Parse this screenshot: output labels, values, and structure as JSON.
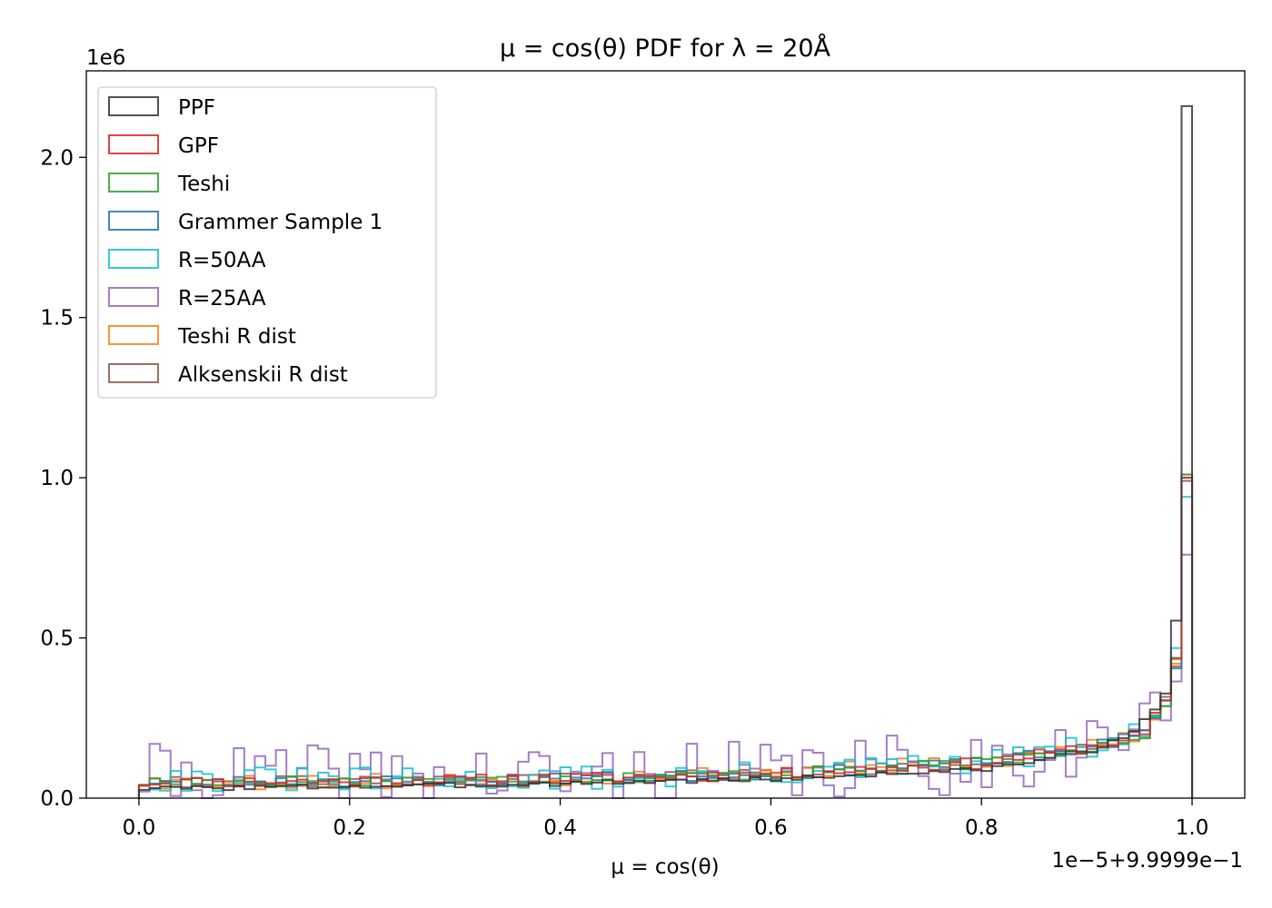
{
  "chart_data": {
    "type": "histogram",
    "title": "μ = cos(θ) PDF for λ = 20Å",
    "xlabel": "μ = cos(θ)",
    "ylabel": "",
    "x_offset_label": "1e−5+9.9999e−1",
    "y_multiplier_label": "1e6",
    "xlim": [
      -0.05,
      1.05
    ],
    "ylim": [
      0,
      2.27
    ],
    "xticks": [
      0.0,
      0.2,
      0.4,
      0.6,
      0.8,
      1.0
    ],
    "xtick_labels": [
      "0.0",
      "0.2",
      "0.4",
      "0.6",
      "0.8",
      "1.0"
    ],
    "yticks": [
      0.0,
      0.5,
      1.0,
      1.5,
      2.0
    ],
    "ytick_labels": [
      "0.0",
      "0.5",
      "1.0",
      "1.5",
      "2.0"
    ],
    "grid": false,
    "legend_position": "upper-left",
    "bin_range": [
      0,
      1
    ],
    "num_bins": 100,
    "series": [
      {
        "name": "PPF",
        "color": "#333333",
        "anchors": [
          [
            0,
            0.03
          ],
          [
            0.3,
            0.04
          ],
          [
            0.6,
            0.06
          ],
          [
            0.8,
            0.09
          ],
          [
            0.9,
            0.15
          ],
          [
            0.94,
            0.21
          ],
          [
            0.96,
            0.27
          ],
          [
            0.97,
            0.32
          ],
          [
            0.98,
            0.56
          ],
          [
            0.99,
            2.16
          ]
        ],
        "noise": 0.004,
        "seed": 3
      },
      {
        "name": "GPF",
        "color": "#d62728",
        "anchors": [
          [
            0,
            0.05
          ],
          [
            0.3,
            0.055
          ],
          [
            0.6,
            0.075
          ],
          [
            0.8,
            0.11
          ],
          [
            0.9,
            0.16
          ],
          [
            0.95,
            0.2
          ],
          [
            0.97,
            0.3
          ],
          [
            0.98,
            0.42
          ],
          [
            0.99,
            1.0
          ]
        ],
        "noise": 0.009,
        "seed": 11
      },
      {
        "name": "Teshi",
        "color": "#2ca02c",
        "anchors": [
          [
            0,
            0.05
          ],
          [
            0.3,
            0.055
          ],
          [
            0.6,
            0.075
          ],
          [
            0.8,
            0.11
          ],
          [
            0.9,
            0.16
          ],
          [
            0.95,
            0.2
          ],
          [
            0.97,
            0.3
          ],
          [
            0.98,
            0.42
          ],
          [
            0.99,
            1.01
          ]
        ],
        "noise": 0.009,
        "seed": 17
      },
      {
        "name": "Grammer Sample 1",
        "color": "#1f77b4",
        "anchors": [
          [
            0,
            0.05
          ],
          [
            0.3,
            0.055
          ],
          [
            0.6,
            0.075
          ],
          [
            0.8,
            0.11
          ],
          [
            0.9,
            0.16
          ],
          [
            0.95,
            0.2
          ],
          [
            0.97,
            0.3
          ],
          [
            0.98,
            0.42
          ],
          [
            0.99,
            1.0
          ]
        ],
        "noise": 0.009,
        "seed": 23
      },
      {
        "name": "R=50AA",
        "color": "#17becf",
        "anchors": [
          [
            0,
            0.06
          ],
          [
            0.3,
            0.055
          ],
          [
            0.6,
            0.075
          ],
          [
            0.8,
            0.11
          ],
          [
            0.9,
            0.16
          ],
          [
            0.95,
            0.2
          ],
          [
            0.97,
            0.3
          ],
          [
            0.98,
            0.44
          ],
          [
            0.99,
            0.94
          ]
        ],
        "noise": 0.02,
        "seed": 31
      },
      {
        "name": "R=25AA",
        "color": "#9467bd",
        "anchors": [
          [
            0,
            0.07
          ],
          [
            0.3,
            0.065
          ],
          [
            0.6,
            0.08
          ],
          [
            0.8,
            0.11
          ],
          [
            0.9,
            0.17
          ],
          [
            0.95,
            0.22
          ],
          [
            0.97,
            0.3
          ],
          [
            0.98,
            0.4
          ],
          [
            0.99,
            0.76
          ]
        ],
        "noise": 0.05,
        "seed": 41
      },
      {
        "name": "Teshi R dist",
        "color": "#ff7f0e",
        "anchors": [
          [
            0,
            0.05
          ],
          [
            0.3,
            0.055
          ],
          [
            0.6,
            0.08
          ],
          [
            0.8,
            0.11
          ],
          [
            0.9,
            0.17
          ],
          [
            0.95,
            0.2
          ],
          [
            0.97,
            0.3
          ],
          [
            0.98,
            0.42
          ],
          [
            0.99,
            1.01
          ]
        ],
        "noise": 0.013,
        "seed": 53
      },
      {
        "name": "Alksenskii R dist",
        "color": "#8c564b",
        "anchors": [
          [
            0,
            0.05
          ],
          [
            0.3,
            0.055
          ],
          [
            0.6,
            0.075
          ],
          [
            0.8,
            0.11
          ],
          [
            0.9,
            0.16
          ],
          [
            0.95,
            0.2
          ],
          [
            0.97,
            0.3
          ],
          [
            0.98,
            0.42
          ],
          [
            0.99,
            0.99
          ]
        ],
        "noise": 0.009,
        "seed": 61
      }
    ]
  }
}
